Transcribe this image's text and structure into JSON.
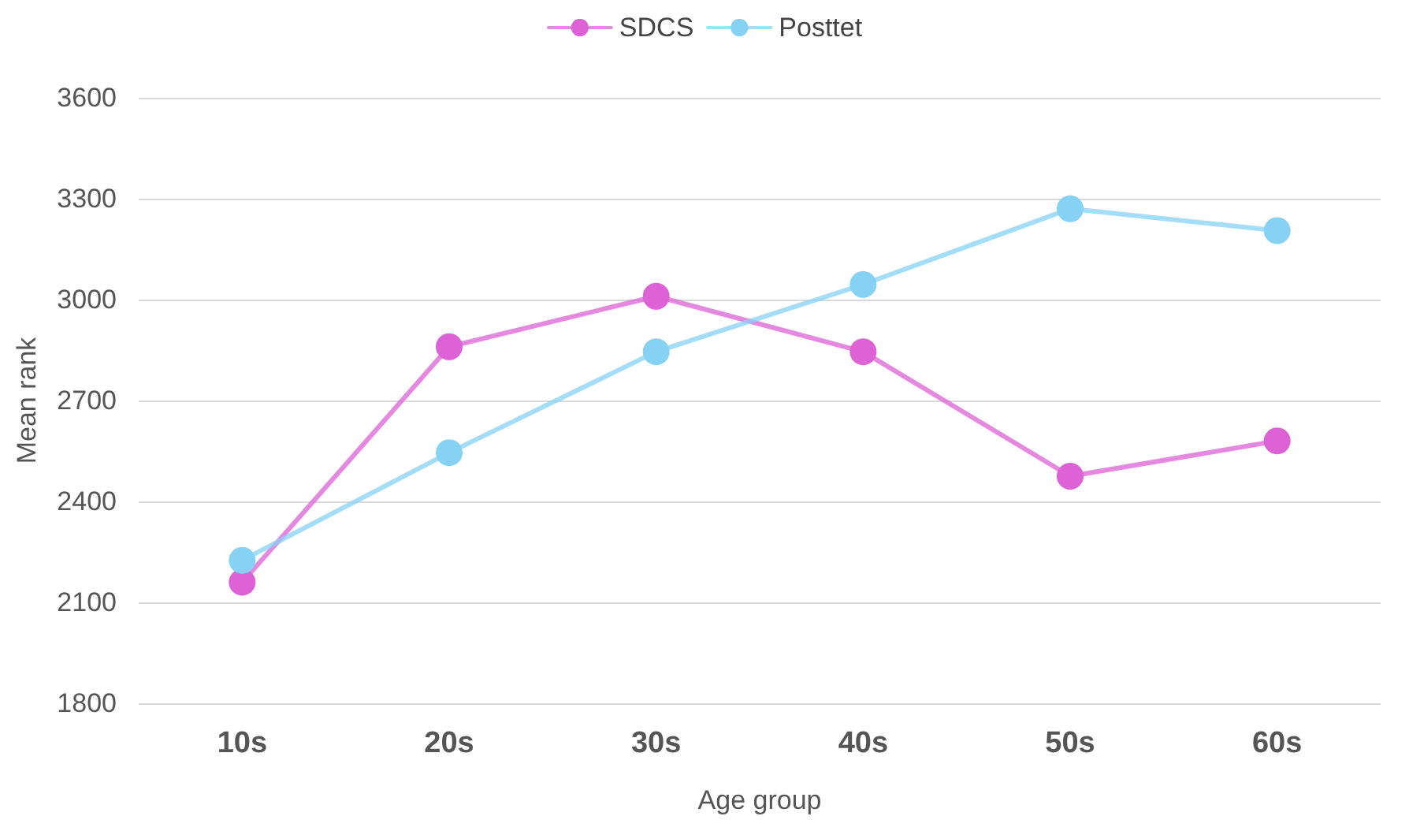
{
  "chart_data": {
    "type": "line",
    "xlabel": "Age group",
    "ylabel": "Mean rank",
    "categories": [
      "10s",
      "20s",
      "30s",
      "40s",
      "50s",
      "60s"
    ],
    "series": [
      {
        "name": "SDCS",
        "color": "#dc62d6",
        "values": [
          2160,
          2860,
          3010,
          2845,
          2475,
          2580
        ]
      },
      {
        "name": "Posttet",
        "color": "#86d2f5",
        "values": [
          2225,
          2545,
          2845,
          3045,
          3270,
          3205
        ]
      }
    ],
    "ylim": [
      1800,
      3600
    ],
    "yticks": [
      1800,
      2100,
      2400,
      2700,
      3000,
      3300,
      3600
    ],
    "grid": "y",
    "legend": "top",
    "marker": "circle",
    "line_style": "solid"
  }
}
